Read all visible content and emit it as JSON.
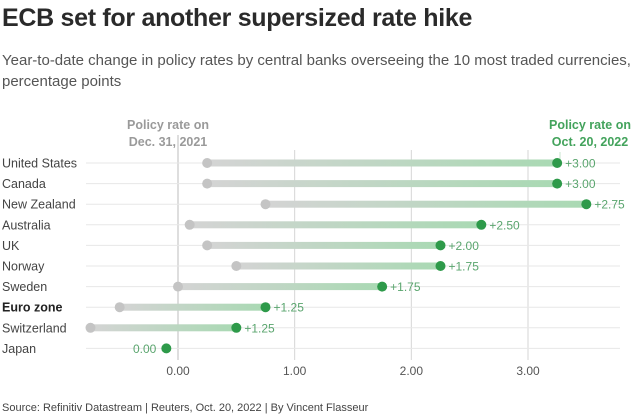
{
  "title": "ECB set for another supersized rate hike",
  "subtitle": "Year-to-date change in policy rates by central banks overseeing the 10 most traded currencies, percentage points",
  "source": "Source: Refinitiv Datastream | Reuters, Oct. 20, 2022 | By Vincent Flasseur",
  "colors": {
    "start_dot": "#c4c4c4",
    "end_dot": "#2e9a4a",
    "label_green": "#5aa56e",
    "header_grey": "#9a9a9a",
    "header_green": "#43a35c"
  },
  "chart_data": {
    "type": "dumbbell",
    "title": "ECB set for another supersized rate hike",
    "start_header": [
      "Policy rate on",
      "Dec. 31, 2021"
    ],
    "end_header": [
      "Policy rate on",
      "Oct. 20, 2022"
    ],
    "xlim": [
      -0.75,
      3.75
    ],
    "xticks": [
      0,
      1,
      2,
      3
    ],
    "xtick_labels": [
      "0.00",
      "1.00",
      "2.00",
      "3.00"
    ],
    "grid": true,
    "rows": [
      {
        "label": "United States",
        "start": 0.25,
        "end": 3.25,
        "change": "+3.00",
        "bold": false
      },
      {
        "label": "Canada",
        "start": 0.25,
        "end": 3.25,
        "change": "+3.00",
        "bold": false
      },
      {
        "label": "New Zealand",
        "start": 0.75,
        "end": 3.5,
        "change": "+2.75",
        "bold": false
      },
      {
        "label": "Australia",
        "start": 0.1,
        "end": 2.6,
        "change": "+2.50",
        "bold": false
      },
      {
        "label": "UK",
        "start": 0.25,
        "end": 2.25,
        "change": "+2.00",
        "bold": false
      },
      {
        "label": "Norway",
        "start": 0.5,
        "end": 2.25,
        "change": "+1.75",
        "bold": false
      },
      {
        "label": "Sweden",
        "start": 0.0,
        "end": 1.75,
        "change": "+1.75",
        "bold": false
      },
      {
        "label": "Euro zone",
        "start": -0.5,
        "end": 0.75,
        "change": "+1.25",
        "bold": true
      },
      {
        "label": "Switzerland",
        "start": -0.75,
        "end": 0.5,
        "change": "+1.25",
        "bold": false
      },
      {
        "label": "Japan",
        "start": -0.1,
        "end": -0.1,
        "change": "0.00",
        "bold": false
      }
    ]
  }
}
